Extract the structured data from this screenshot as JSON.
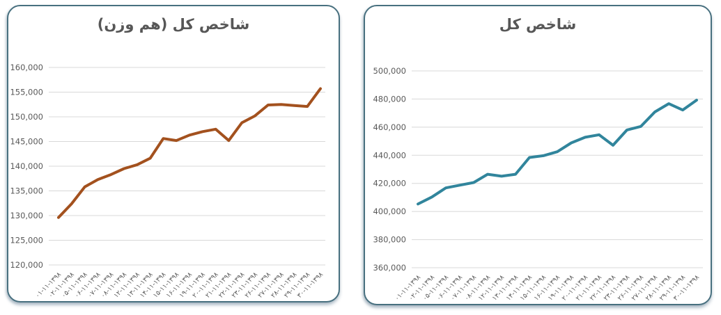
{
  "theme": {
    "background": "#FFFFFF",
    "card_border": "#48707F",
    "gridline": "#D8D8D8",
    "tick_text": "#595959",
    "title_text": "#575757"
  },
  "chart_data": [
    {
      "type": "line",
      "title": "شاخص کل (هم وزن)",
      "categories": [
        "۰۱-۱۱-۱۳۹۸",
        "۰۲-۱۱-۱۳۹۸",
        "۰۵-۱۱-۱۳۹۸",
        "۰۶-۱۱-۱۳۹۸",
        "۰۷-۱۱-۱۳۹۸",
        "۰۸-۱۱-۱۳۹۸",
        "۱۲-۱۱-۱۳۹۸",
        "۱۳-۱۱-۱۳۹۸",
        "۱۴-۱۱-۱۳۹۸",
        "۱۵-۱۱-۱۳۹۸",
        "۱۶-۱۱-۱۳۹۸",
        "۱۹-۱۱-۱۳۹۸",
        "۲۰-۱۱-۱۳۹۸",
        "۲۱-۱۱-۱۳۹۸",
        "۲۲-۱۱-۱۳۹۸",
        "۲۳-۱۱-۱۳۹۸",
        "۲۶-۱۱-۱۳۹۸",
        "۲۷-۱۱-۱۳۹۸",
        "۲۸-۱۱-۱۳۹۸",
        "۲۹-۱۱-۱۳۹۸",
        "۳۰-۱۱-۱۳۹۸"
      ],
      "values": [
        129600,
        132400,
        135800,
        137300,
        138300,
        139500,
        140300,
        141600,
        145600,
        145200,
        146300,
        147000,
        147500,
        145200,
        148800,
        150200,
        152400,
        152500,
        152300,
        152100,
        155700
      ],
      "ylim": [
        120000,
        160000
      ],
      "ytick_step": 5000,
      "xlabel": "",
      "ylabel": "",
      "grid": true,
      "legend": "none",
      "line_color": "#A3511E"
    },
    {
      "type": "line",
      "title": "شاخص کل",
      "categories": [
        "۰۱-۱۱-۱۳۹۸",
        "۰۲-۱۱-۱۳۹۸",
        "۰۵-۱۱-۱۳۹۸",
        "۰۶-۱۱-۱۳۹۸",
        "۰۷-۱۱-۱۳۹۸",
        "۰۸-۱۱-۱۳۹۸",
        "۱۲-۱۱-۱۳۹۸",
        "۱۳-۱۱-۱۳۹۸",
        "۱۴-۱۱-۱۳۹۸",
        "۱۵-۱۱-۱۳۹۸",
        "۱۶-۱۱-۱۳۹۸",
        "۱۹-۱۱-۱۳۹۸",
        "۲۰-۱۱-۱۳۹۸",
        "۲۱-۱۱-۱۳۹۸",
        "۲۲-۱۱-۱۳۹۸",
        "۲۳-۱۱-۱۳۹۸",
        "۲۶-۱۱-۱۳۹۸",
        "۲۷-۱۱-۱۳۹۸",
        "۲۸-۱۱-۱۳۹۸",
        "۲۹-۱۱-۱۳۹۸",
        "۳۰-۱۱-۱۳۹۸"
      ],
      "values": [
        405300,
        410300,
        416800,
        418700,
        420600,
        426500,
        425100,
        426500,
        438400,
        439700,
        442500,
        448800,
        452800,
        454600,
        447100,
        458000,
        460500,
        470800,
        476700,
        472200,
        479200
      ],
      "ylim": [
        360000,
        500000
      ],
      "ytick_step": 20000,
      "xlabel": "",
      "ylabel": "",
      "grid": true,
      "legend": "none",
      "line_color": "#31859C"
    }
  ]
}
